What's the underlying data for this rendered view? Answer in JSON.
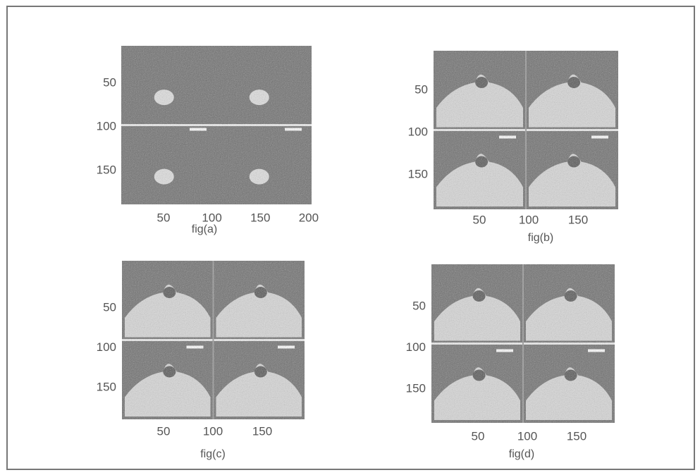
{
  "panels": [
    {
      "caption": "fig(a)",
      "yticks": [
        50,
        100,
        150
      ],
      "xticks": [
        50,
        100,
        150,
        200
      ]
    },
    {
      "caption": "fig(b)",
      "yticks": [
        50,
        100,
        150
      ],
      "xticks": [
        50,
        100,
        150
      ]
    },
    {
      "caption": "fig(c)",
      "yticks": [
        50,
        100,
        150
      ],
      "xticks": [
        50,
        100,
        150
      ]
    },
    {
      "caption": "fig(d)",
      "yticks": [
        50,
        100,
        150
      ],
      "xticks": [
        50,
        100,
        150
      ]
    }
  ]
}
